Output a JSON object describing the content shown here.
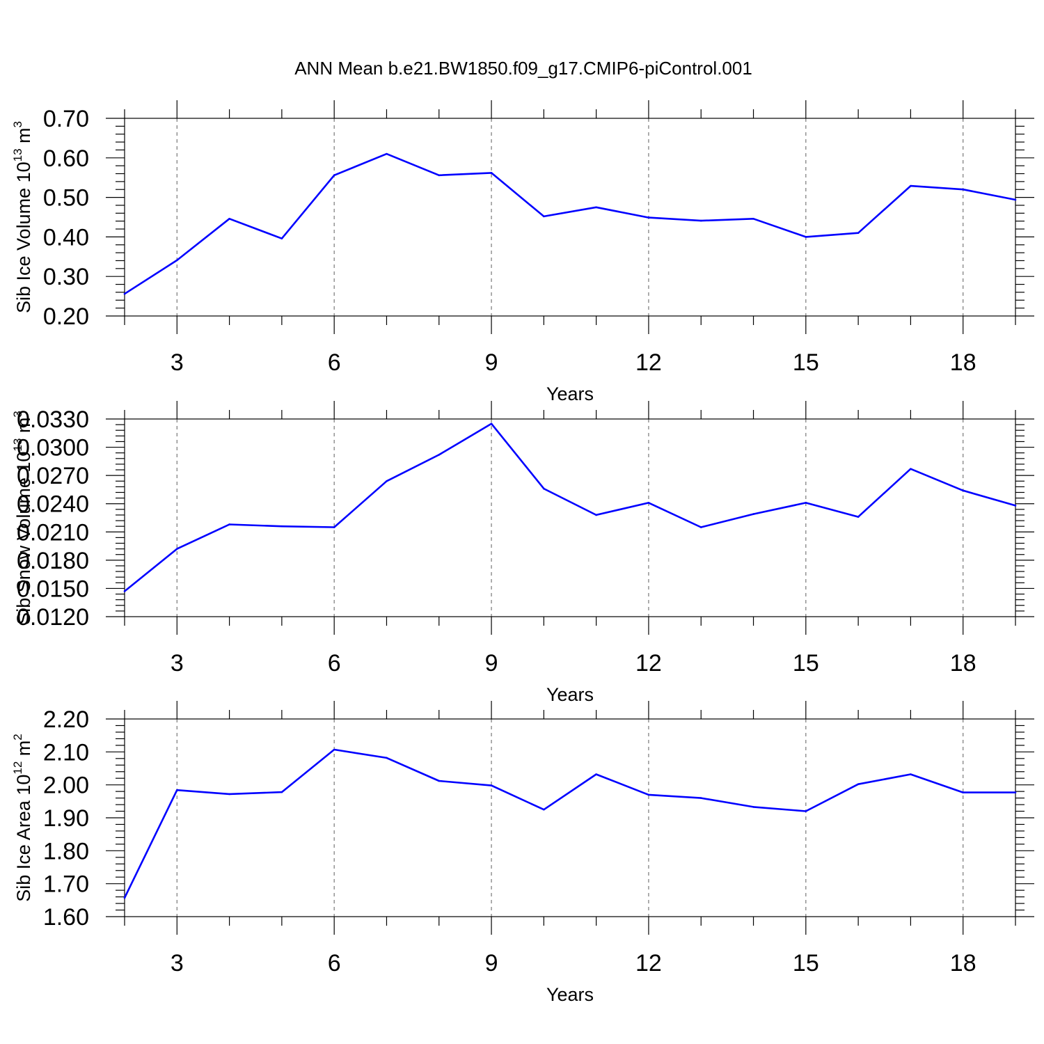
{
  "chart_data": [
    {
      "type": "line",
      "title": "ANN Mean b.e21.BW1850.f09_g17.CMIP6-piControl.001",
      "xlabel": "Years",
      "ylabel_main": "Sib Ice Volume 10",
      "ylabel_exp": "13",
      "ylabel_unit": " m",
      "ylabel_unit_exp": "3",
      "xlim": [
        2,
        19
      ],
      "ylim": [
        0.2,
        0.7
      ],
      "xticks": [
        3,
        6,
        9,
        12,
        15,
        18
      ],
      "yticks": [
        0.2,
        0.3,
        0.4,
        0.5,
        0.6,
        0.7
      ],
      "ytick_labels": [
        "0.20",
        "0.30",
        "0.40",
        "0.50",
        "0.60",
        "0.70"
      ],
      "grid": "vertical dashed at major x ticks",
      "series": [
        {
          "name": "Sib Ice Volume",
          "color": "#0000ff",
          "x": [
            2,
            3,
            4,
            5,
            6,
            7,
            8,
            9,
            10,
            11,
            12,
            13,
            14,
            15,
            16,
            17,
            18,
            19
          ],
          "values": [
            0.256,
            0.341,
            0.446,
            0.396,
            0.556,
            0.61,
            0.556,
            0.562,
            0.452,
            0.475,
            0.449,
            0.441,
            0.446,
            0.4,
            0.41,
            0.529,
            0.52,
            0.494
          ]
        }
      ]
    },
    {
      "type": "line",
      "xlabel": "Years",
      "ylabel_main": "Sib Snow Volume 10",
      "ylabel_exp": "13",
      "ylabel_unit": " m",
      "ylabel_unit_exp": "3",
      "xlim": [
        2,
        19
      ],
      "ylim": [
        0.012,
        0.033
      ],
      "xticks": [
        3,
        6,
        9,
        12,
        15,
        18
      ],
      "yticks": [
        0.012,
        0.015,
        0.018,
        0.021,
        0.024,
        0.027,
        0.03,
        0.033
      ],
      "ytick_labels": [
        "0.0120",
        "0.0150",
        "0.0180",
        "0.0210",
        "0.0240",
        "0.0270",
        "0.0300",
        "0.0330"
      ],
      "grid": "vertical dashed at major x ticks",
      "series": [
        {
          "name": "Sib Snow Volume",
          "color": "#0000ff",
          "x": [
            2,
            3,
            4,
            5,
            6,
            7,
            8,
            9,
            10,
            11,
            12,
            13,
            14,
            15,
            16,
            17,
            18,
            19
          ],
          "values": [
            0.0147,
            0.0192,
            0.0218,
            0.0216,
            0.0215,
            0.0264,
            0.0292,
            0.0325,
            0.0256,
            0.0228,
            0.0241,
            0.0215,
            0.0229,
            0.0241,
            0.0226,
            0.0277,
            0.0254,
            0.0238
          ]
        }
      ]
    },
    {
      "type": "line",
      "xlabel": "Years",
      "ylabel_main": "Sib Ice Area 10",
      "ylabel_exp": "12",
      "ylabel_unit": " m",
      "ylabel_unit_exp": "2",
      "xlim": [
        2,
        19
      ],
      "ylim": [
        1.6,
        2.2
      ],
      "xticks": [
        3,
        6,
        9,
        12,
        15,
        18
      ],
      "yticks": [
        1.6,
        1.7,
        1.8,
        1.9,
        2.0,
        2.1,
        2.2
      ],
      "ytick_labels": [
        "1.60",
        "1.70",
        "1.80",
        "1.90",
        "2.00",
        "2.10",
        "2.20"
      ],
      "grid": "vertical dashed at major x ticks",
      "series": [
        {
          "name": "Sib Ice Area",
          "color": "#0000ff",
          "x": [
            2,
            3,
            4,
            5,
            6,
            7,
            8,
            9,
            10,
            11,
            12,
            13,
            14,
            15,
            16,
            17,
            18,
            19
          ],
          "values": [
            1.657,
            1.984,
            1.972,
            1.978,
            2.107,
            2.082,
            2.012,
            1.998,
            1.925,
            2.032,
            1.97,
            1.96,
            1.933,
            1.92,
            2.002,
            2.032,
            1.977,
            1.977
          ]
        }
      ]
    }
  ]
}
